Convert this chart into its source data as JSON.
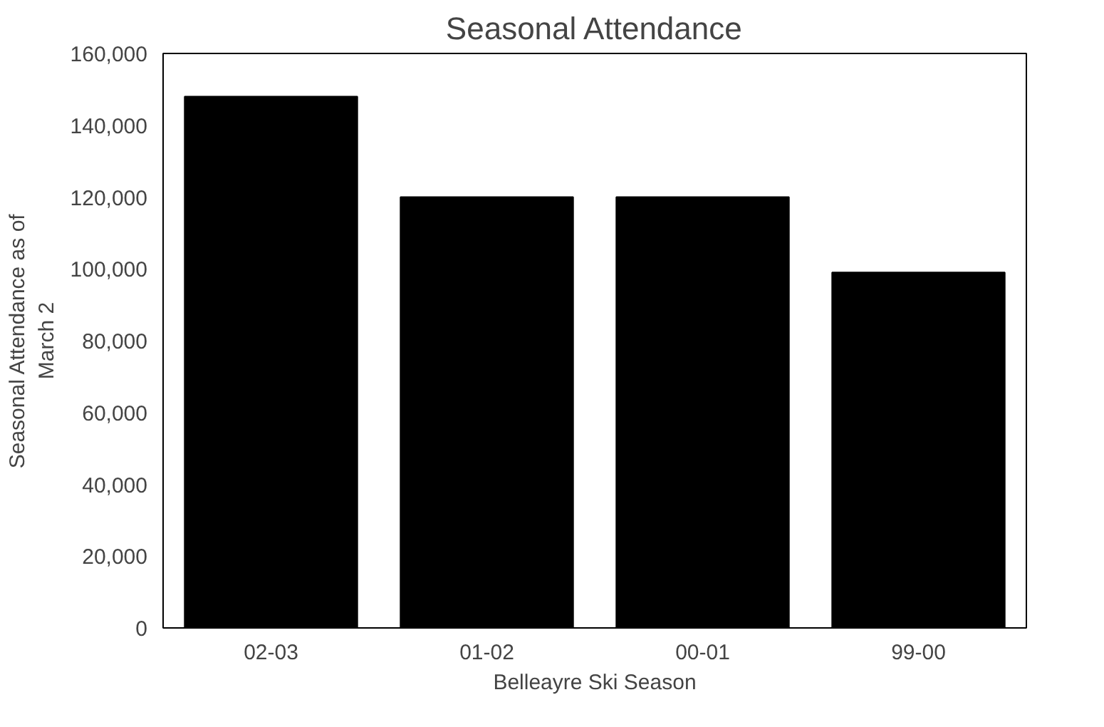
{
  "chart_data": {
    "type": "bar",
    "title": "Seasonal Attendance",
    "xlabel": "Belleayre Ski Season",
    "ylabel": "Seasonal Attendance as of\nMarch 2",
    "categories": [
      "02-03",
      "01-02",
      "00-01",
      "99-00"
    ],
    "values": [
      148000,
      120000,
      120000,
      99000
    ],
    "color": "#000000",
    "ylim": [
      0,
      160000
    ],
    "yticks": [
      {
        "value": 0,
        "label": "0"
      },
      {
        "value": 20000,
        "label": "20,000"
      },
      {
        "value": 40000,
        "label": "40,000"
      },
      {
        "value": 60000,
        "label": "60,000"
      },
      {
        "value": 80000,
        "label": "80,000"
      },
      {
        "value": 100000,
        "label": "100,000"
      },
      {
        "value": 120000,
        "label": "120,000"
      },
      {
        "value": 140000,
        "label": "140,000"
      },
      {
        "value": 160000,
        "label": "160,000"
      }
    ],
    "grid": false
  }
}
